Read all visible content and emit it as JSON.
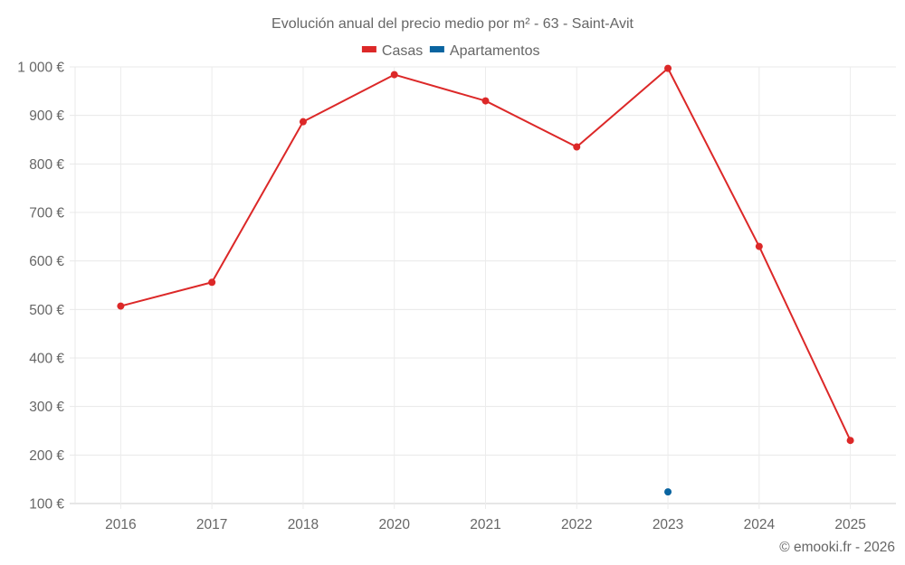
{
  "chart_data": {
    "type": "line",
    "title": "Evolución anual del precio medio por m² - 63 - Saint-Avit",
    "xlabel": "",
    "ylabel": "",
    "categories": [
      "2016",
      "2017",
      "2018",
      "2020",
      "2021",
      "2022",
      "2023",
      "2024",
      "2025"
    ],
    "series": [
      {
        "name": "Casas",
        "color": "#dc2828",
        "values": [
          507,
          556,
          887,
          984,
          930,
          835,
          997,
          630,
          230
        ]
      },
      {
        "name": "Apartamentos",
        "color": "#0a64a0",
        "values": [
          null,
          null,
          null,
          null,
          null,
          null,
          124,
          null,
          null
        ]
      }
    ],
    "ylim": [
      100,
      1000
    ],
    "yticks": [
      100,
      200,
      300,
      400,
      500,
      600,
      700,
      800,
      900,
      1000
    ],
    "ytick_labels": [
      "100 €",
      "200 €",
      "300 €",
      "400 €",
      "500 €",
      "600 €",
      "700 €",
      "800 €",
      "900 €",
      "1 000 €"
    ],
    "grid": true,
    "legend_position": "top"
  },
  "credit": "© emooki.fr - 2026"
}
